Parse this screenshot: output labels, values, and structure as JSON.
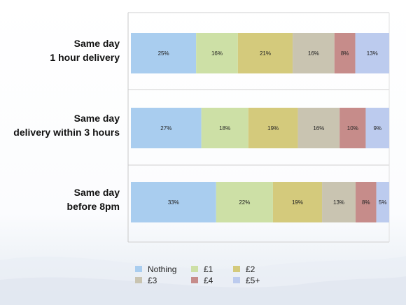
{
  "chart_data": {
    "type": "bar",
    "orientation": "horizontal",
    "stacked": "percent",
    "categories": [
      [
        "Same day",
        "1 hour delivery"
      ],
      [
        "Same day",
        "delivery within 3 hours"
      ],
      [
        "Same day",
        "before 8pm"
      ]
    ],
    "series": [
      {
        "name": "Nothing",
        "color": "#a9cdef",
        "values": [
          25,
          27,
          33
        ]
      },
      {
        "name": "£1",
        "color": "#cde0a6",
        "values": [
          16,
          18,
          22
        ]
      },
      {
        "name": "£2",
        "color": "#d4ca7c",
        "values": [
          21,
          19,
          19
        ]
      },
      {
        "name": "£3",
        "color": "#c9c4b1",
        "values": [
          16,
          16,
          13
        ]
      },
      {
        "name": "£4",
        "color": "#c68c8a",
        "values": [
          8,
          10,
          8
        ]
      },
      {
        "name": "£5+",
        "color": "#bccbee",
        "values": [
          13,
          9,
          5
        ]
      }
    ],
    "data_labels": [
      [
        "25%",
        "16%",
        "21%",
        "16%",
        "8%",
        "13%"
      ],
      [
        "27%",
        "18%",
        "19%",
        "16%",
        "10%",
        "9%"
      ],
      [
        "33%",
        "22%",
        "19%",
        "13%",
        "8%",
        "5%"
      ]
    ],
    "legend": {
      "position": "bottom",
      "columns": 3
    },
    "grid": false
  }
}
